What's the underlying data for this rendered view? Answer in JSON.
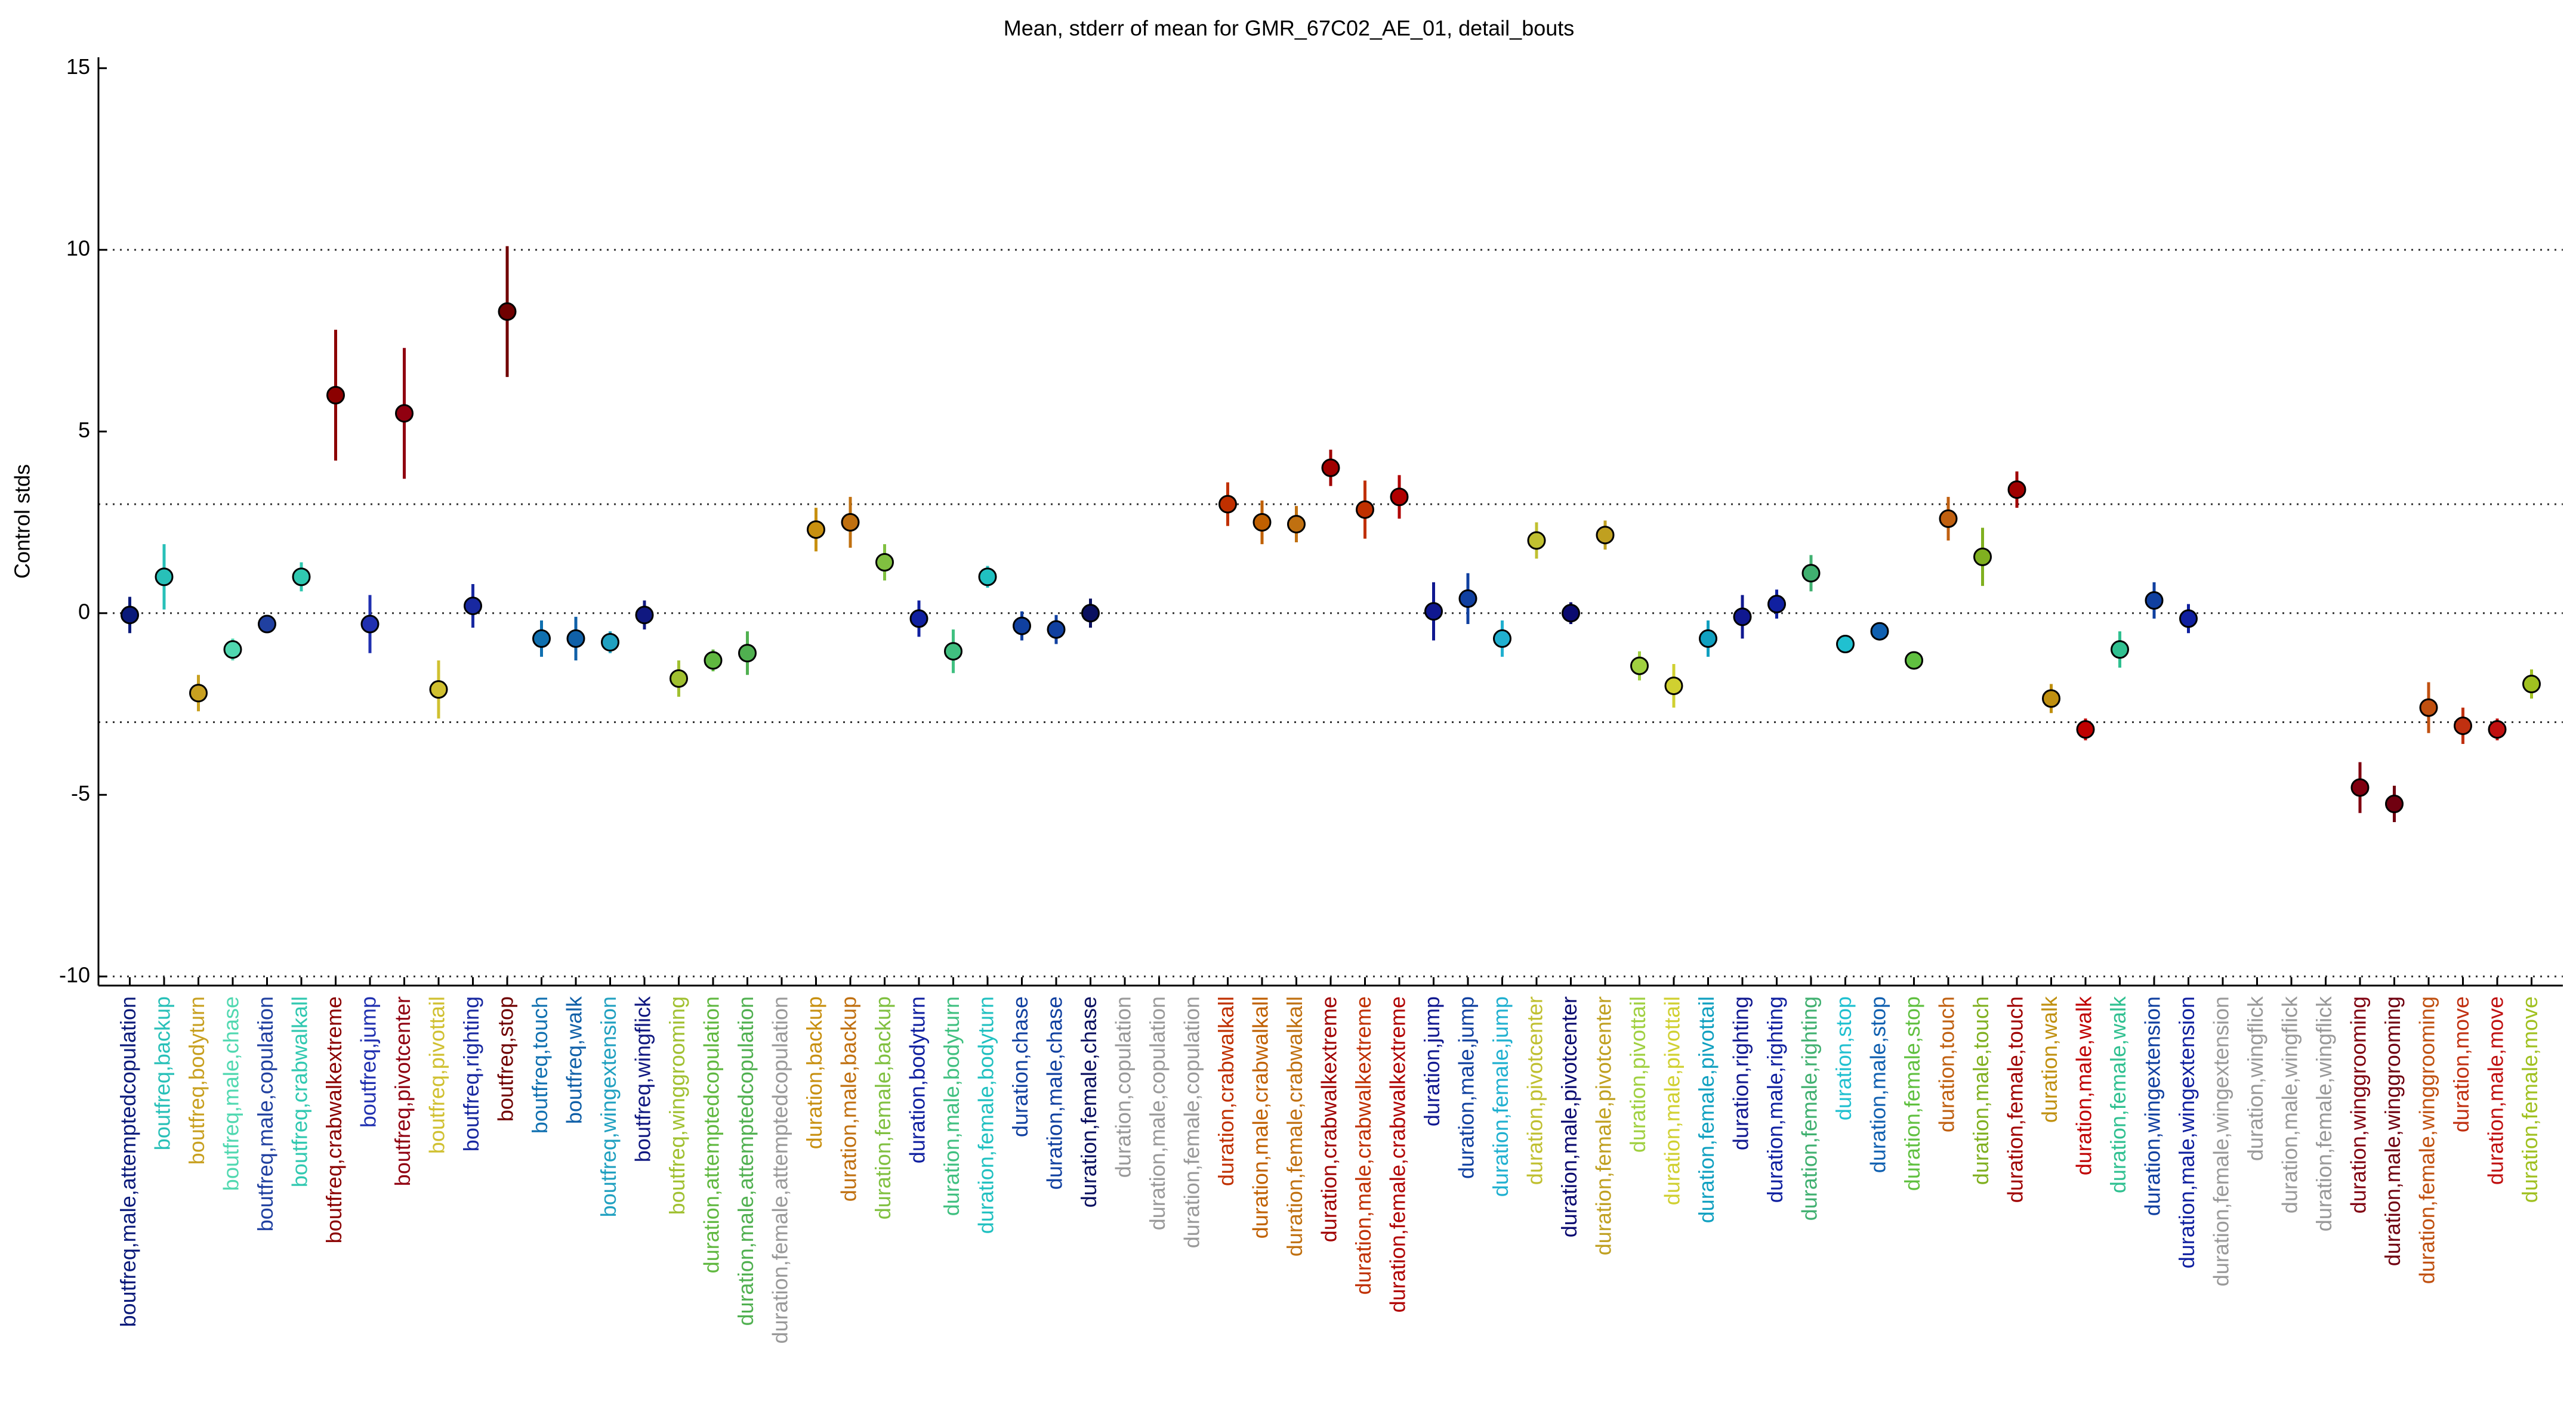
{
  "chart_data": {
    "type": "errorbar",
    "title": "Mean, stderr of mean for GMR_67C02_AE_01, detail_bouts",
    "y_label": "Control stds",
    "categories": [
      "boutfreq,male,attemptedcopulation",
      "boutfreq,backup",
      "boutfreq,bodyturn",
      "boutfreq,male,chase",
      "boutfreq,male,copulation",
      "boutfreq,crabwalkall",
      "boutfreq,crabwalkextreme",
      "boutfreq,jump",
      "boutfreq,pivotcenter",
      "boutfreq,pivottail",
      "boutfreq,righting",
      "boutfreq,stop",
      "boutfreq,touch",
      "boutfreq,walk",
      "boutfreq,wingextension",
      "boutfreq,wingflick",
      "boutfreq,winggrooming",
      "duration,attemptedcopulation",
      "duration,male,attemptedcopulation",
      "duration,female,attemptedcopulation",
      "duration,backup",
      "duration,male,backup",
      "duration,female,backup",
      "duration,bodyturn",
      "duration,male,bodyturn",
      "duration,female,bodyturn",
      "duration,chase",
      "duration,male,chase",
      "duration,female,chase",
      "duration,copulation",
      "duration,male,copulation",
      "duration,female,copulation",
      "duration,crabwalkall",
      "duration,male,crabwalkall",
      "duration,female,crabwalkall",
      "duration,crabwalkextreme",
      "duration,male,crabwalkextreme",
      "duration,female,crabwalkextreme",
      "duration,jump",
      "duration,male,jump",
      "duration,female,jump",
      "duration,pivotcenter",
      "duration,male,pivotcenter",
      "duration,female,pivotcenter",
      "duration,pivottail",
      "duration,male,pivottail",
      "duration,female,pivottail",
      "duration,righting",
      "duration,male,righting",
      "duration,female,righting",
      "duration,stop",
      "duration,male,stop",
      "duration,female,stop",
      "duration,touch",
      "duration,male,touch",
      "duration,female,touch",
      "duration,walk",
      "duration,male,walk",
      "duration,female,walk",
      "duration,wingextension",
      "duration,male,wingextension",
      "duration,female,wingextension",
      "duration,wingflick",
      "duration,male,wingflick",
      "duration,female,wingflick",
      "duration,winggrooming",
      "duration,male,winggrooming",
      "duration,female,winggrooming",
      "duration,move",
      "duration,male,move",
      "duration,female,move"
    ],
    "values": [
      -0.05,
      1.0,
      -2.2,
      -1.0,
      -0.3,
      1.0,
      6.0,
      -0.3,
      5.5,
      -2.1,
      0.2,
      8.3,
      -0.7,
      -0.7,
      -0.8,
      -0.05,
      -1.8,
      -1.3,
      -1.1,
      null,
      2.3,
      2.5,
      1.4,
      -0.15,
      -1.05,
      1.0,
      -0.35,
      -0.45,
      0.0,
      null,
      null,
      null,
      3.0,
      2.5,
      2.45,
      4.0,
      2.85,
      3.2,
      0.05,
      0.4,
      -0.7,
      2.0,
      0.0,
      2.15,
      -1.45,
      -2.0,
      -0.7,
      -0.1,
      0.25,
      1.1,
      -0.85,
      -0.5,
      -1.3,
      2.6,
      1.55,
      3.4,
      -2.35,
      -3.2,
      -1.0,
      0.35,
      -0.15,
      null,
      null,
      null,
      null,
      -4.8,
      -5.25,
      -2.6,
      -3.1,
      -3.2,
      -1.95
    ],
    "errors": [
      0.5,
      0.9,
      0.5,
      0.3,
      0.2,
      0.4,
      1.8,
      0.8,
      1.8,
      0.8,
      0.6,
      1.8,
      0.5,
      0.6,
      0.3,
      0.4,
      0.5,
      0.3,
      0.6,
      null,
      0.6,
      0.7,
      0.5,
      0.5,
      0.6,
      0.3,
      0.4,
      0.4,
      0.4,
      null,
      null,
      null,
      0.6,
      0.6,
      0.5,
      0.5,
      0.8,
      0.6,
      0.8,
      0.7,
      0.5,
      0.5,
      0.3,
      0.4,
      0.4,
      0.6,
      0.5,
      0.6,
      0.4,
      0.5,
      0.2,
      0.2,
      0.2,
      0.6,
      0.8,
      0.5,
      0.4,
      0.3,
      0.5,
      0.5,
      0.4,
      null,
      null,
      null,
      null,
      0.7,
      0.5,
      0.7,
      0.5,
      0.3,
      0.4
    ],
    "colors": [
      "#0a1a7a",
      "#28c0b8",
      "#c8a020",
      "#50d8b0",
      "#2040a0",
      "#30c8b0",
      "#8b0000",
      "#2030b0",
      "#900010",
      "#d0c030",
      "#1828a0",
      "#700000",
      "#1070b0",
      "#1060a8",
      "#20a0c0",
      "#101880",
      "#a0c030",
      "#60b840",
      "#50b050",
      "#999999",
      "#c89010",
      "#c07010",
      "#80c040",
      "#1020a0",
      "#40c080",
      "#20c0c0",
      "#1040a0",
      "#1040a0",
      "#0a1060",
      "#999999",
      "#999999",
      "#999999",
      "#c03000",
      "#c06000",
      "#c07010",
      "#a00000",
      "#c03000",
      "#b00000",
      "#101890",
      "#1040a0",
      "#20b0d0",
      "#c0c030",
      "#0a0a70",
      "#c0a020",
      "#a0d040",
      "#d0d030",
      "#10a0c0",
      "#101890",
      "#1020a0",
      "#40b070",
      "#20c0d0",
      "#1060b0",
      "#60c040",
      "#c06010",
      "#80b020",
      "#a00000",
      "#c09010",
      "#c00000",
      "#30c090",
      "#1040a0",
      "#1020a0",
      "#999999",
      "#999999",
      "#999999",
      "#999999",
      "#800010",
      "#700010",
      "#c05010",
      "#c03010",
      "#c01010",
      "#a0c020"
    ],
    "ylim": [
      -10.25,
      15.3
    ],
    "yticks": [
      -10,
      -5,
      0,
      5,
      10,
      15
    ],
    "reference_lines": [
      -10,
      -3,
      0,
      3,
      10
    ]
  }
}
